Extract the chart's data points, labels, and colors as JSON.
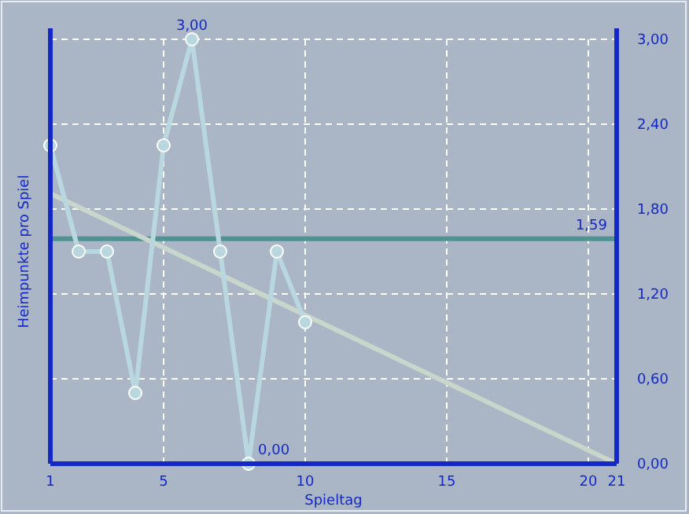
{
  "chart_data": {
    "type": "line",
    "xlabel": "Spieltag",
    "ylabel": "Heimpunkte pro Spiel",
    "xlim": [
      1,
      21
    ],
    "xticks": [
      1,
      5,
      10,
      15,
      20,
      21
    ],
    "ylim": [
      0,
      3
    ],
    "yticks": [
      {
        "value": 0,
        "label": "0,00"
      },
      {
        "value": 0.6,
        "label": "0,60"
      },
      {
        "value": 1.2,
        "label": "1,20"
      },
      {
        "value": 1.8,
        "label": "1,80"
      },
      {
        "value": 2.4,
        "label": "2,40"
      },
      {
        "value": 3,
        "label": "3,00"
      }
    ],
    "grid": true,
    "marker": "circle",
    "line_style": "solid",
    "series": [
      {
        "color": "#b9d7df",
        "x": [
          1,
          2,
          3,
          4,
          5,
          6,
          7,
          8,
          9,
          10
        ],
        "values": [
          2.25,
          1.5,
          1.5,
          0.5,
          2.25,
          3,
          1.5,
          0,
          1.5,
          1
        ]
      },
      {
        "type": "line",
        "marker": "none",
        "color": "#c9d6cc",
        "x": [
          1,
          21
        ],
        "values": [
          1.91,
          0
        ]
      }
    ],
    "ref_lines": [
      {
        "axis": "y",
        "value": 1.59,
        "label": "1,59",
        "color": "#4f9294"
      }
    ],
    "annotations": [
      {
        "text": "3,00",
        "x": 6,
        "y": 3
      },
      {
        "text": "0,00",
        "x": 8,
        "y": 0
      }
    ]
  }
}
